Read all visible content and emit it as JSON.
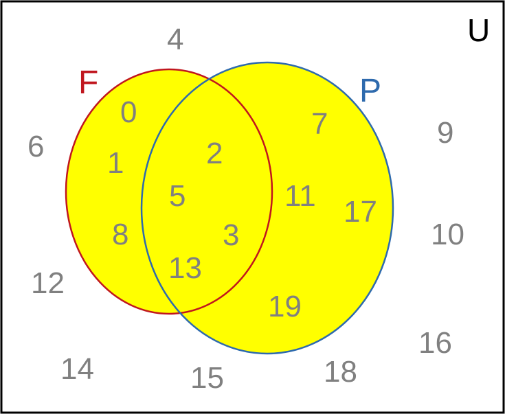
{
  "universe_label": "U",
  "sets": [
    {
      "label": "F",
      "outline_color": "#c0161e"
    },
    {
      "label": "P",
      "outline_color": "#2e6aad"
    }
  ],
  "fill_color": "#ffff00",
  "number_color": "#808080",
  "regions": {
    "f_only": [
      "0",
      "1",
      "8"
    ],
    "f_and_p": [
      "2",
      "5",
      "3",
      "13"
    ],
    "p_only": [
      "7",
      "11",
      "17",
      "19"
    ],
    "outside": [
      "4",
      "6",
      "9",
      "10",
      "12",
      "14",
      "15",
      "18",
      "16"
    ]
  }
}
